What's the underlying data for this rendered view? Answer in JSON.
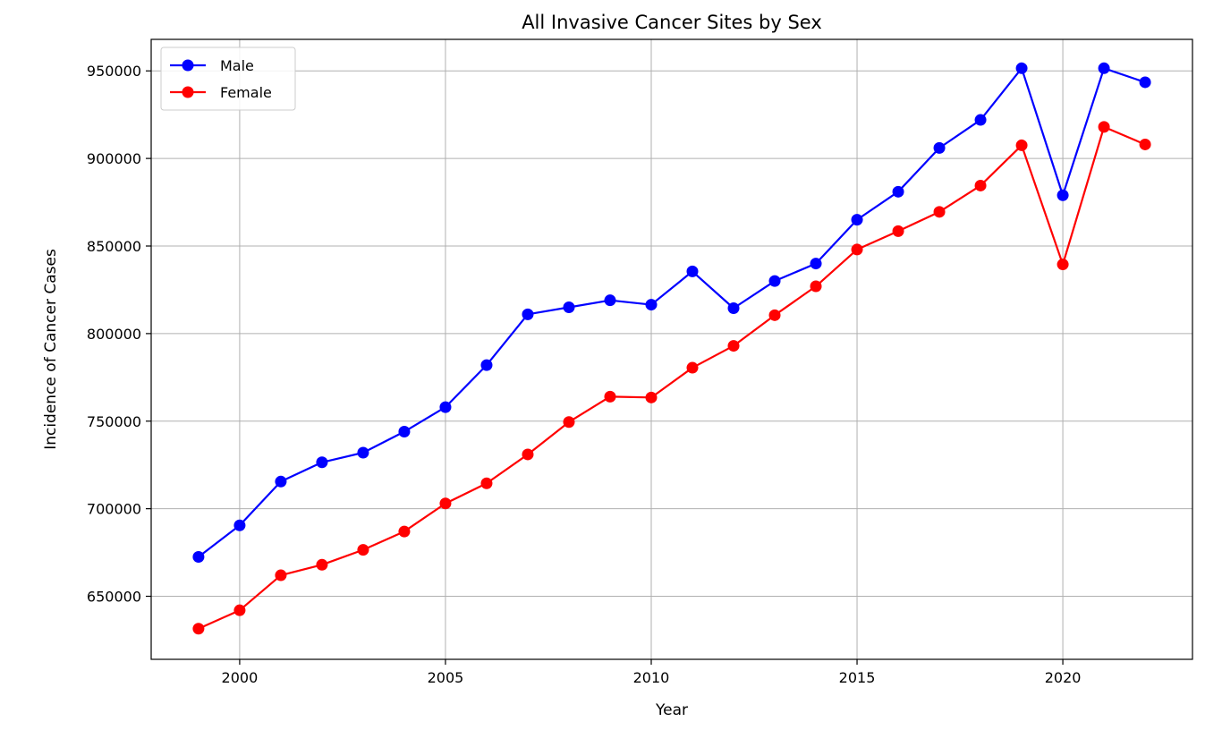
{
  "chart_data": {
    "type": "line",
    "title": "All Invasive Cancer Sites by Sex",
    "xlabel": "Year",
    "ylabel": "Incidence of Cancer Cases",
    "xlim": [
      1997.85,
      2023.15
    ],
    "ylim": [
      614000,
      968000
    ],
    "x_ticks": [
      2000,
      2005,
      2010,
      2015,
      2020
    ],
    "y_ticks": [
      650000,
      700000,
      750000,
      800000,
      850000,
      900000,
      950000
    ],
    "grid": true,
    "legend_position": "top-left",
    "x": [
      1999,
      2000,
      2001,
      2002,
      2003,
      2004,
      2005,
      2006,
      2007,
      2008,
      2009,
      2010,
      2011,
      2012,
      2013,
      2014,
      2015,
      2016,
      2017,
      2018,
      2019,
      2020,
      2021,
      2022
    ],
    "series": [
      {
        "name": "Male",
        "color": "#0000ff",
        "marker": "circle",
        "values": [
          672500,
          690500,
          715500,
          726500,
          732000,
          744000,
          758000,
          782000,
          811000,
          815000,
          819000,
          816500,
          835500,
          814500,
          830000,
          840000,
          865000,
          881000,
          906000,
          922000,
          951500,
          879000,
          951500,
          943500
        ]
      },
      {
        "name": "Female",
        "color": "#ff0000",
        "marker": "circle",
        "values": [
          631500,
          642000,
          662000,
          668000,
          676500,
          687000,
          703000,
          714500,
          731000,
          749500,
          764000,
          763500,
          780500,
          793000,
          810500,
          827000,
          848000,
          858500,
          869500,
          884500,
          907500,
          839500,
          918000,
          908000
        ]
      }
    ]
  }
}
